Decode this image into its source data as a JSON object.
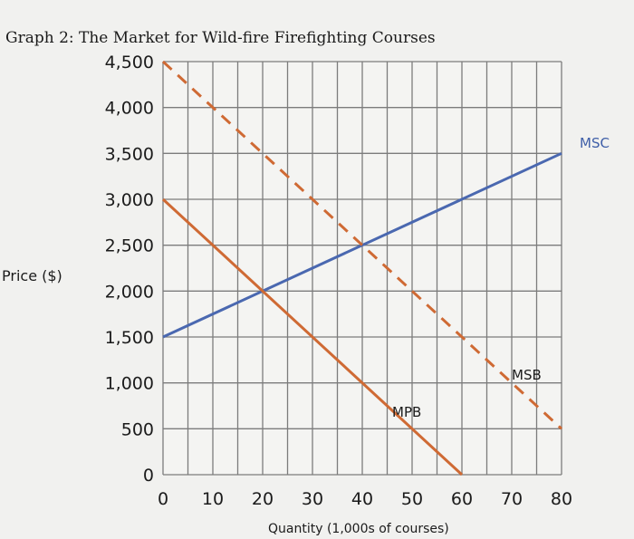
{
  "chart_data": {
    "type": "line",
    "title": "Graph 2: The Market for Wild-fire Firefighting Courses",
    "ylabel": "Price ($)",
    "xlabel": "Quantity (1,000s of courses)",
    "x_ticks": [
      0,
      10,
      20,
      30,
      40,
      50,
      60,
      70,
      80
    ],
    "y_ticks": [
      "0",
      "500",
      "1,000",
      "1,500",
      "2,000",
      "2,500",
      "3,000",
      "3,500",
      "4,000",
      "4,500"
    ],
    "xlim": [
      0,
      80
    ],
    "ylim": [
      0,
      4500
    ],
    "grid": true,
    "series": [
      {
        "name": "MSC",
        "color": "#4a68b0",
        "style": "solid",
        "x": [
          0,
          80
        ],
        "y": [
          1500,
          3500
        ]
      },
      {
        "name": "MPB",
        "color": "#cf6a34",
        "style": "solid",
        "x": [
          0,
          60
        ],
        "y": [
          3000,
          0
        ]
      },
      {
        "name": "MSB",
        "color": "#cf6a34",
        "style": "dashed",
        "x": [
          0,
          80
        ],
        "y": [
          4500,
          500
        ]
      }
    ]
  }
}
